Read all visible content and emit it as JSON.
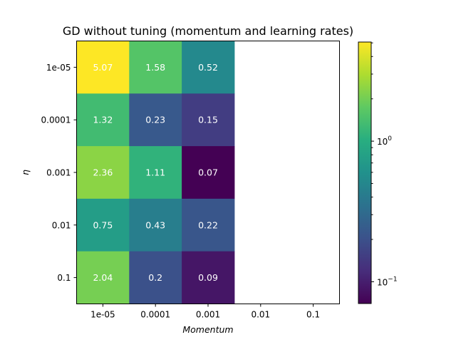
{
  "chart_data": {
    "type": "heatmap",
    "title": "GD without tuning  (momentum and learning rates)",
    "xlabel": "Momentum",
    "ylabel": "η",
    "x_categories": [
      "1e-05",
      "0.0001",
      "0.001",
      "0.01",
      "0.1"
    ],
    "y_categories": [
      "1e-05",
      "0.0001",
      "0.001",
      "0.01",
      "0.1"
    ],
    "values": [
      [
        5.07,
        1.58,
        0.52,
        null,
        null
      ],
      [
        1.32,
        0.23,
        0.15,
        null,
        null
      ],
      [
        2.36,
        1.11,
        0.07,
        null,
        null
      ],
      [
        0.75,
        0.43,
        0.22,
        null,
        null
      ],
      [
        2.04,
        0.2,
        0.09,
        null,
        null
      ]
    ],
    "colormap": "viridis",
    "color_scale": "log",
    "color_range": [
      0.07,
      5.07
    ],
    "colorbar": {
      "scale": "log",
      "ticks": [
        {
          "value": 1,
          "label_base": "10",
          "label_exp": "0"
        },
        {
          "value": 0.1,
          "label_base": "10",
          "label_exp": "−1"
        }
      ],
      "position": "right"
    },
    "missing_cells_color": "#ffffff"
  }
}
